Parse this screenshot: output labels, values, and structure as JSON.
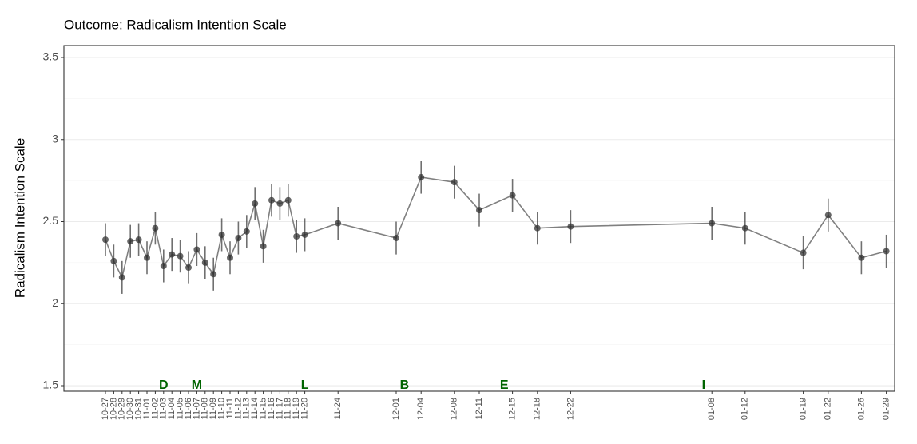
{
  "chart_data": {
    "type": "line",
    "title": "Outcome: Radicalism Intention Scale",
    "y_label": "Radicalism Intention Scale",
    "x": [
      "10-27",
      "10-28",
      "10-29",
      "10-30",
      "10-31",
      "11-01",
      "11-02",
      "11-03",
      "11-04",
      "11-05",
      "11-06",
      "11-07",
      "11-08",
      "11-09",
      "11-10",
      "11-11",
      "11-12",
      "11-13",
      "11-14",
      "11-15",
      "11-16",
      "11-17",
      "11-18",
      "11-19",
      "11-20",
      "11-24",
      "12-01",
      "12-04",
      "12-08",
      "12-11",
      "12-15",
      "12-18",
      "12-22",
      "01-08",
      "01-12",
      "01-19",
      "01-22",
      "01-26",
      "01-29"
    ],
    "series": [
      {
        "color": "#333333",
        "line_color": "#808080",
        "values": [
          2.39,
          2.26,
          2.16,
          2.38,
          2.39,
          2.28,
          2.46,
          2.23,
          2.3,
          2.29,
          2.22,
          2.33,
          2.25,
          2.18,
          2.42,
          2.28,
          2.4,
          2.44,
          2.61,
          2.35,
          2.63,
          2.61,
          2.63,
          2.41,
          2.42,
          2.49,
          2.4,
          2.77,
          2.74,
          2.57,
          2.66,
          2.46,
          2.47,
          2.49,
          2.46,
          2.31,
          2.54,
          2.28,
          2.32
        ],
        "errors": [
          0.1,
          0.1,
          0.1,
          0.1,
          0.1,
          0.1,
          0.1,
          0.1,
          0.1,
          0.1,
          0.1,
          0.1,
          0.1,
          0.1,
          0.1,
          0.1,
          0.1,
          0.1,
          0.1,
          0.1,
          0.1,
          0.1,
          0.1,
          0.1,
          0.1,
          0.1,
          0.1,
          0.1,
          0.1,
          0.1,
          0.1,
          0.1,
          0.1,
          0.1,
          0.1,
          0.1,
          0.1,
          0.1,
          0.1
        ]
      }
    ],
    "xlim": [
      "10-22",
      "01-30"
    ],
    "ylim": [
      1.466,
      3.573
    ],
    "yticks": [
      1.5,
      2.0,
      2.5,
      3.0,
      3.5
    ],
    "y_minor_grid": [
      1.75,
      2.25,
      2.75,
      3.25
    ],
    "grid": true,
    "annotations": [
      {
        "x": "11-03",
        "y": 1.5,
        "text": "D",
        "color": "#006400"
      },
      {
        "x": "11-07",
        "y": 1.5,
        "text": "M",
        "color": "#006400"
      },
      {
        "x": "11-20",
        "y": 1.5,
        "text": "L",
        "color": "#006400"
      },
      {
        "x": "12-02",
        "y": 1.5,
        "text": "B",
        "color": "#006400"
      },
      {
        "x": "12-14",
        "y": 1.5,
        "text": "E",
        "color": "#006400"
      },
      {
        "x": "01-07",
        "y": 1.5,
        "text": "I",
        "color": "#006400"
      }
    ]
  }
}
